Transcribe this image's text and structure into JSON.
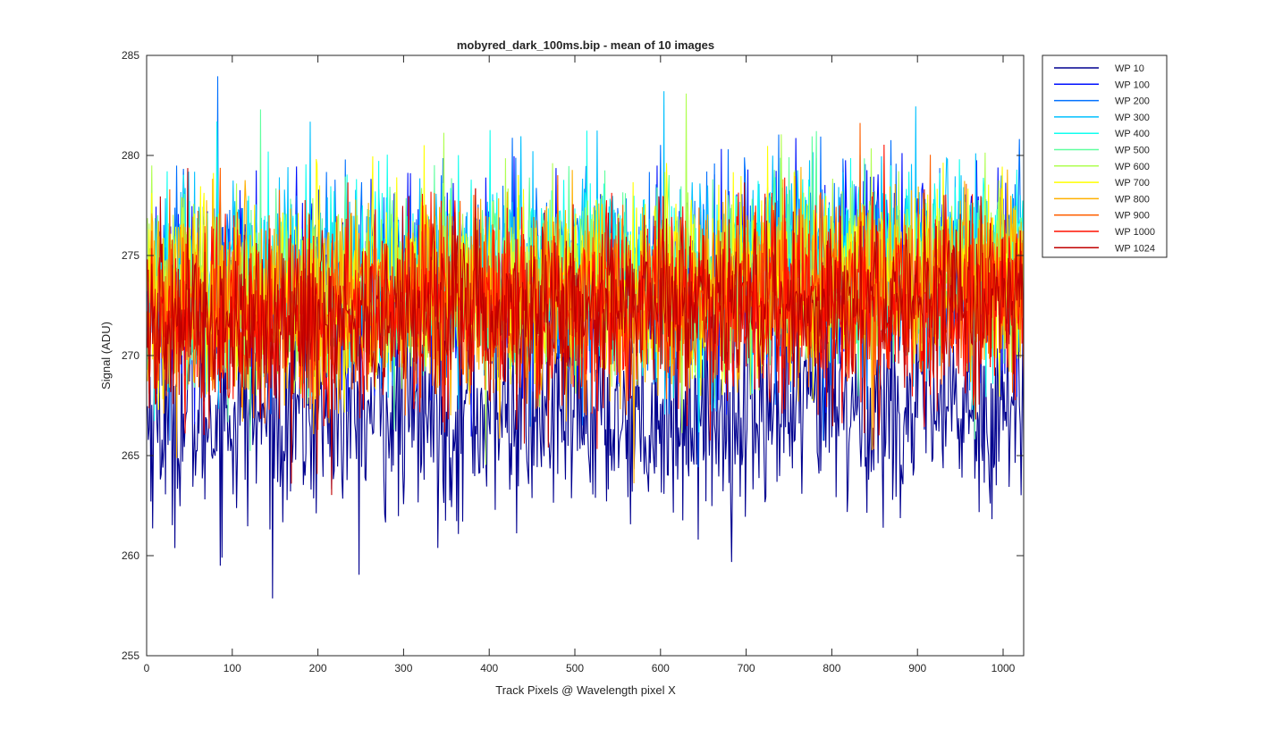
{
  "chart_data": {
    "type": "line",
    "title": "mobyred_dark_100ms.bip - mean of 10 images",
    "xlabel": "Track Pixels @ Wavelength pixel X",
    "ylabel": "Signal (ADU)",
    "xlim": [
      0,
      1024
    ],
    "ylim": [
      255,
      285
    ],
    "xticks": [
      0,
      100,
      200,
      300,
      400,
      500,
      600,
      700,
      800,
      900,
      1000
    ],
    "yticks": [
      255,
      260,
      265,
      270,
      275,
      280,
      285
    ],
    "x_points": 1024,
    "grid": false,
    "legend_position": "outside top-right",
    "series": [
      {
        "name": "WP 10",
        "color": "#00008F",
        "mean": 267.5,
        "spread": 2.6
      },
      {
        "name": "WP 100",
        "color": "#0010FF",
        "mean": 273.5,
        "spread": 2.4
      },
      {
        "name": "WP 200",
        "color": "#0070FF",
        "mean": 273.8,
        "spread": 2.4
      },
      {
        "name": "WP 300",
        "color": "#00C0FF",
        "mean": 274.0,
        "spread": 2.4
      },
      {
        "name": "WP 400",
        "color": "#10FFEF",
        "mean": 274.0,
        "spread": 2.4
      },
      {
        "name": "WP 500",
        "color": "#60FF9F",
        "mean": 273.8,
        "spread": 2.3
      },
      {
        "name": "WP 600",
        "color": "#AFFF50",
        "mean": 273.6,
        "spread": 2.3
      },
      {
        "name": "WP 700",
        "color": "#FFFF00",
        "mean": 273.4,
        "spread": 2.3
      },
      {
        "name": "WP 800",
        "color": "#FFB000",
        "mean": 273.0,
        "spread": 2.3
      },
      {
        "name": "WP 900",
        "color": "#FF6000",
        "mean": 272.7,
        "spread": 2.3
      },
      {
        "name": "WP 1000",
        "color": "#FF1000",
        "mean": 272.4,
        "spread": 2.3
      },
      {
        "name": "WP 1024",
        "color": "#C00000",
        "mean": 272.2,
        "spread": 2.3
      }
    ]
  }
}
